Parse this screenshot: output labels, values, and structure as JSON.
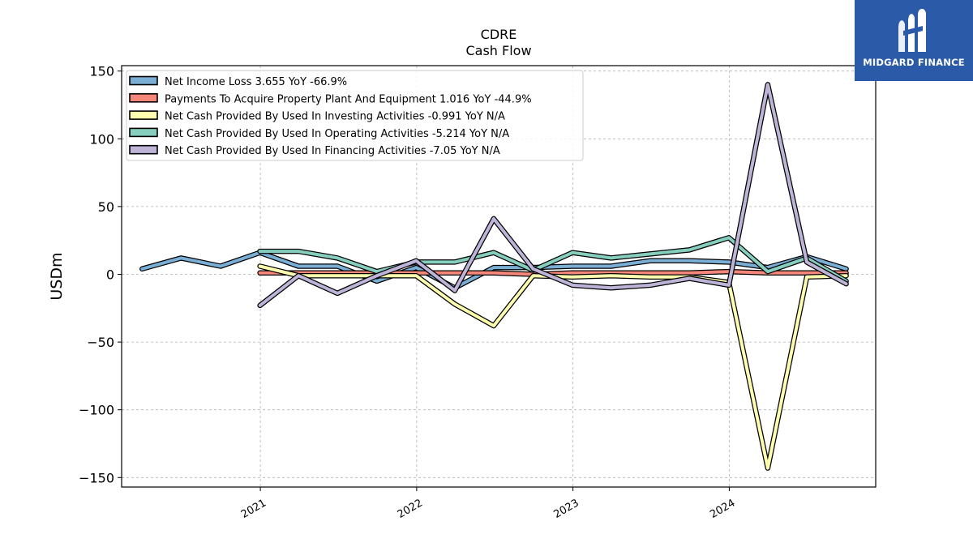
{
  "chart_data": {
    "type": "line",
    "title": "CDRE",
    "subtitle": "Cash Flow",
    "ylabel": "USDm",
    "xlabel": "",
    "ylim": [
      -157,
      154
    ],
    "xlim": [
      "2020-02-12",
      "2024-12-08"
    ],
    "yticks": [
      150,
      100,
      50,
      0,
      -50,
      -100,
      -150
    ],
    "ytick_labels": [
      "150",
      "100",
      "50",
      "0",
      "−50",
      "−100",
      "−150"
    ],
    "xticks": [
      {
        "date": "2021-01-01",
        "label": "2021"
      },
      {
        "date": "2022-01-01",
        "label": "2022"
      },
      {
        "date": "2023-01-01",
        "label": "2023"
      },
      {
        "date": "2024-01-01",
        "label": "2024"
      }
    ],
    "grid": true,
    "legend_position": "top-left",
    "series": [
      {
        "name": "Net Income Loss  3.655 YoY -66.9%",
        "color": "#7aaed4",
        "x": [
          "2020-03-31",
          "2020-06-30",
          "2020-09-30",
          "2020-12-31",
          "2021-03-31",
          "2021-06-30",
          "2021-09-30",
          "2021-12-31",
          "2022-03-31",
          "2022-06-30",
          "2022-09-30",
          "2022-12-31",
          "2023-03-31",
          "2023-06-30",
          "2023-09-30",
          "2023-12-31",
          "2024-03-31",
          "2024-06-30",
          "2024-09-30"
        ],
        "y": [
          4,
          12,
          6,
          16,
          6,
          6,
          -5,
          5,
          -10,
          5,
          5,
          6,
          6,
          10,
          10,
          9,
          5,
          13,
          4
        ]
      },
      {
        "name": "Payments To Acquire Property Plant And Equipment  1.016 YoY -44.9%",
        "color": "#f4877a",
        "x": [
          "2020-12-31",
          "2021-03-31",
          "2021-06-30",
          "2021-09-30",
          "2021-12-31",
          "2022-03-31",
          "2022-06-30",
          "2022-09-30",
          "2022-12-31",
          "2023-03-31",
          "2023-06-30",
          "2023-09-30",
          "2023-12-31",
          "2024-03-31",
          "2024-06-30",
          "2024-09-30"
        ],
        "y": [
          1,
          1,
          1,
          1,
          1,
          1,
          1,
          0,
          1,
          1,
          1,
          1,
          2,
          1,
          1,
          1
        ]
      },
      {
        "name": "Net Cash Provided By Used In Investing Activities  -0.991 YoY N/A",
        "color": "#ffffb0",
        "x": [
          "2020-12-31",
          "2021-03-31",
          "2021-06-30",
          "2021-09-30",
          "2021-12-31",
          "2022-03-31",
          "2022-06-30",
          "2022-09-30",
          "2022-12-31",
          "2023-03-31",
          "2023-06-30",
          "2023-09-30",
          "2023-12-31",
          "2024-03-31",
          "2024-06-30",
          "2024-09-30"
        ],
        "y": [
          6,
          -1,
          -1,
          -1,
          -1,
          -22,
          -38,
          -1,
          -2,
          -1,
          -2,
          -2,
          -6,
          -143,
          -2,
          -1
        ]
      },
      {
        "name": "Net Cash Provided By Used In Operating Activities  -5.214 YoY N/A",
        "color": "#86cfbf",
        "x": [
          "2020-12-31",
          "2021-03-31",
          "2021-06-30",
          "2021-09-30",
          "2021-12-31",
          "2022-03-31",
          "2022-06-30",
          "2022-09-30",
          "2022-12-31",
          "2023-03-31",
          "2023-06-30",
          "2023-09-30",
          "2023-12-31",
          "2024-03-31",
          "2024-06-30",
          "2024-09-30"
        ],
        "y": [
          17,
          17,
          12,
          2,
          9,
          9,
          16,
          3,
          16,
          12,
          15,
          18,
          27,
          2,
          12,
          -5
        ]
      },
      {
        "name": "Net Cash Provided By Used In Financing Activities  -7.05 YoY N/A",
        "color": "#bdb4d8",
        "x": [
          "2020-12-31",
          "2021-03-31",
          "2021-06-30",
          "2021-09-30",
          "2021-12-31",
          "2022-03-31",
          "2022-06-30",
          "2022-09-30",
          "2022-12-31",
          "2023-03-31",
          "2023-06-30",
          "2023-09-30",
          "2023-12-31",
          "2024-03-31",
          "2024-06-30",
          "2024-09-30"
        ],
        "y": [
          -23,
          -1,
          -14,
          -1,
          10,
          -12,
          41,
          4,
          -8,
          -10,
          -8,
          -3,
          -8,
          140,
          9,
          -7
        ]
      }
    ]
  },
  "brand": {
    "name": "MIDGARD FINANCE",
    "logo_icon": "midgard-logo-icon",
    "background": "#2a5aa8"
  }
}
